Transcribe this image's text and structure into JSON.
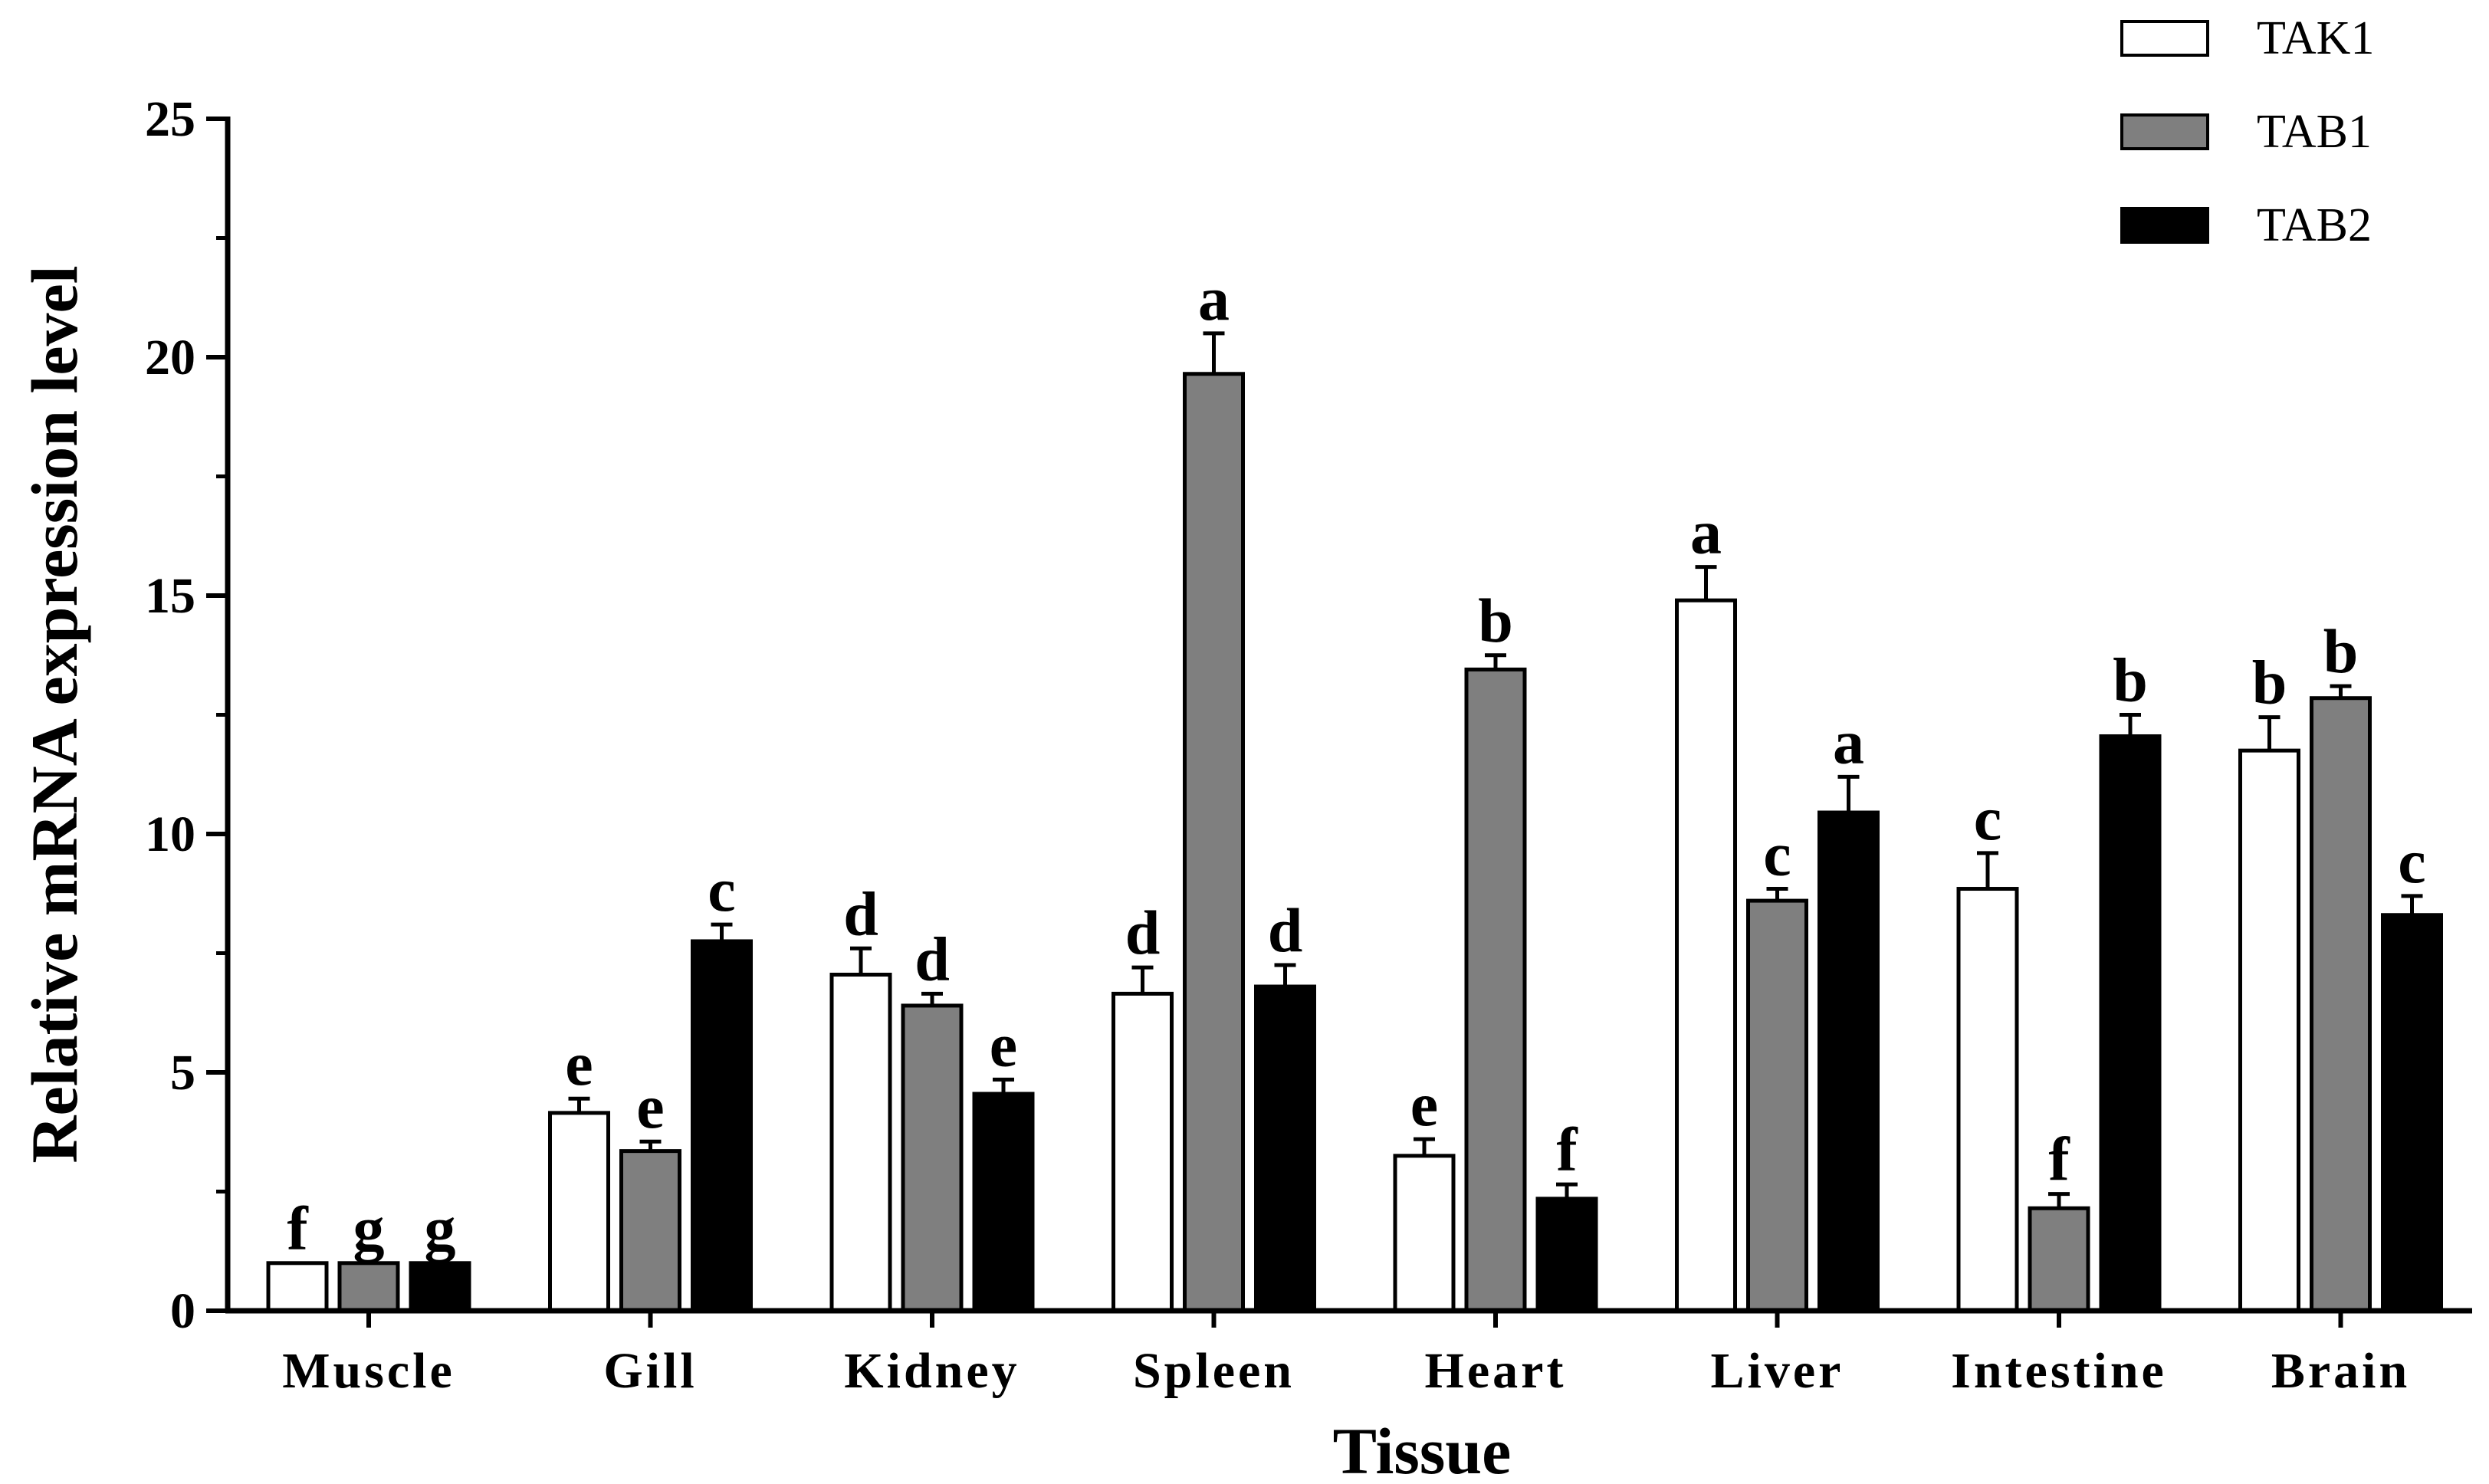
{
  "chart_data": {
    "type": "bar",
    "xlabel": "Tissue",
    "ylabel": "Relative mRNA expression level",
    "ylim": [
      0,
      25
    ],
    "yticks": [
      0,
      5,
      10,
      15,
      20,
      25
    ],
    "legend_position": "top-right",
    "categories": [
      "Muscle",
      "Gill",
      "Kidney",
      "Spleen",
      "Heart",
      "Liver",
      "Intestine",
      "Brain"
    ],
    "series": [
      {
        "name": "TAK1",
        "color": "#ffffff",
        "values": [
          1.0,
          4.15,
          7.05,
          6.65,
          3.25,
          14.9,
          8.85,
          11.75
        ],
        "errors": [
          0.0,
          0.3,
          0.55,
          0.55,
          0.35,
          0.7,
          0.75,
          0.7
        ],
        "labels": [
          "f",
          "e",
          "d",
          "d",
          "e",
          "a",
          "c",
          "b"
        ]
      },
      {
        "name": "TAB1",
        "color": "#7f7f7f",
        "values": [
          1.0,
          3.35,
          6.4,
          19.65,
          13.45,
          8.6,
          2.15,
          12.85
        ],
        "errors": [
          0.0,
          0.2,
          0.25,
          0.85,
          0.3,
          0.25,
          0.3,
          0.25
        ],
        "labels": [
          "g",
          "e",
          "d",
          "a",
          "b",
          "c",
          "f",
          "b"
        ]
      },
      {
        "name": "TAB2",
        "color": "#000000",
        "values": [
          1.0,
          7.75,
          4.55,
          6.8,
          2.35,
          10.45,
          12.05,
          8.3
        ],
        "errors": [
          0.0,
          0.35,
          0.3,
          0.45,
          0.3,
          0.75,
          0.45,
          0.4
        ],
        "labels": [
          "g",
          "c",
          "e",
          "d",
          "f",
          "a",
          "b",
          "c"
        ]
      }
    ]
  }
}
